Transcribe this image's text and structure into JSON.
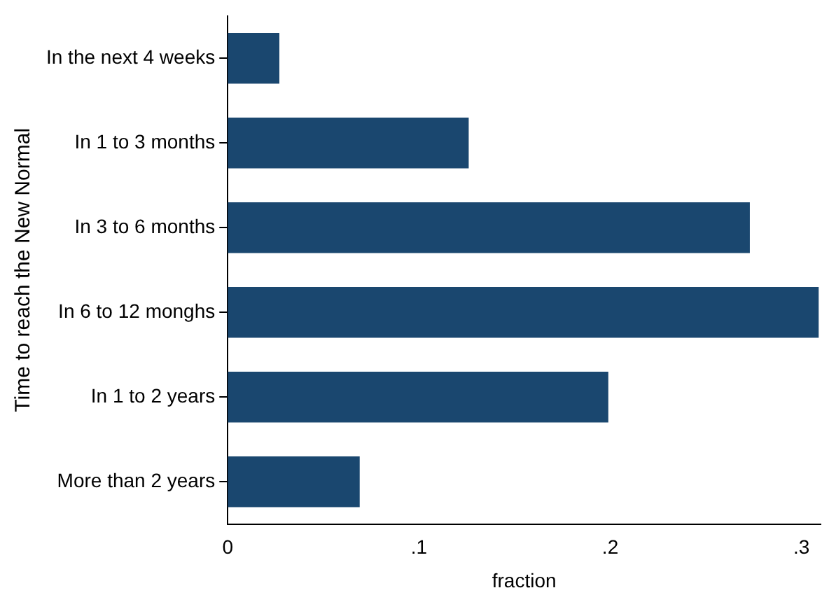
{
  "chart_data": {
    "type": "bar",
    "orientation": "horizontal",
    "xlabel": "fraction",
    "ylabel": "Time to reach the New Normal",
    "categories": [
      "In the next 4 weeks",
      "In 1 to 3 months",
      "In 3 to 6 months",
      "In 6 to 12 monghs",
      "In 1 to 2 years",
      "More than 2 years"
    ],
    "values": [
      0.027,
      0.126,
      0.273,
      0.309,
      0.199,
      0.069
    ],
    "color": "#1a476f",
    "xlim": [
      0,
      0.31
    ],
    "xticks": [
      {
        "value": 0,
        "label": "0"
      },
      {
        "value": 0.1,
        "label": ".1"
      },
      {
        "value": 0.2,
        "label": ".2"
      },
      {
        "value": 0.3,
        "label": ".3"
      }
    ],
    "grid": false,
    "legend": false
  }
}
